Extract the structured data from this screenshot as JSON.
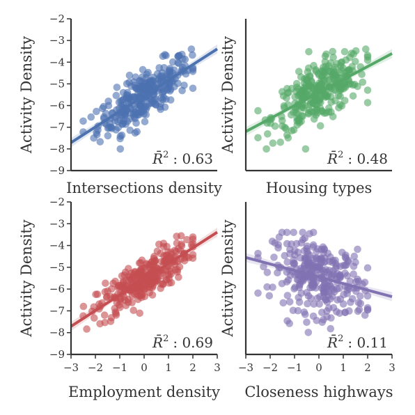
{
  "chart_data": [
    {
      "type": "scatter",
      "panel": "intersections",
      "xlabel": "Intersections density",
      "ylabel": "Activity Density",
      "r2_prefix": "R̄",
      "r2_sup": "2",
      "r2_value": ": 0.63",
      "color": "#4c72b0",
      "xlim": [
        -3,
        3
      ],
      "ylim": [
        -9,
        -2
      ],
      "yticks": [
        "−2",
        "−3",
        "−4",
        "−5",
        "−6",
        "−7",
        "−8",
        "−9"
      ],
      "xticks": [],
      "fit": {
        "slope": 0.72,
        "intercept": -5.55
      },
      "spread": {
        "x_mean": 0.0,
        "x_sd": 0.95,
        "noise_sd": 0.55
      }
    },
    {
      "type": "scatter",
      "panel": "housing",
      "xlabel": "Housing types",
      "ylabel": "Activity Density",
      "r2_prefix": "R̄",
      "r2_sup": "2",
      "r2_value": ": 0.48",
      "color": "#55a868",
      "xlim": [
        -3,
        3
      ],
      "ylim": [
        -9,
        -2
      ],
      "yticks": [],
      "xticks": [],
      "fit": {
        "slope": 0.6,
        "intercept": -5.4
      },
      "spread": {
        "x_mean": 0.0,
        "x_sd": 0.95,
        "noise_sd": 0.65
      }
    },
    {
      "type": "scatter",
      "panel": "employment",
      "xlabel": "Employment density",
      "ylabel": "Activity Density",
      "r2_prefix": "R̄",
      "r2_sup": "2",
      "r2_value": ": 0.69",
      "color": "#c44e52",
      "xlim": [
        -3,
        3
      ],
      "ylim": [
        -9,
        -2
      ],
      "yticks": [
        "−2",
        "−3",
        "−4",
        "−5",
        "−6",
        "−7",
        "−8",
        "−9"
      ],
      "xticks": [
        "−3",
        "−2",
        "−1",
        "0",
        "1",
        "2",
        "3"
      ],
      "fit": {
        "slope": 0.72,
        "intercept": -5.55
      },
      "spread": {
        "x_mean": 0.0,
        "x_sd": 0.95,
        "noise_sd": 0.5
      }
    },
    {
      "type": "scatter",
      "panel": "closeness",
      "xlabel": "Closeness highways",
      "ylabel": "Activity Density",
      "r2_prefix": "R̄",
      "r2_sup": "2",
      "r2_value": ": 0.11",
      "color": "#8172b2",
      "xlim": [
        -3,
        3
      ],
      "ylim": [
        -9,
        -2
      ],
      "yticks": [],
      "xticks": [
        "−3",
        "−2",
        "−1",
        "0",
        "1",
        "2",
        "3"
      ],
      "fit": {
        "slope": -0.3,
        "intercept": -5.45
      },
      "spread": {
        "x_mean": 0.0,
        "x_sd": 0.95,
        "noise_sd": 0.85
      }
    }
  ]
}
